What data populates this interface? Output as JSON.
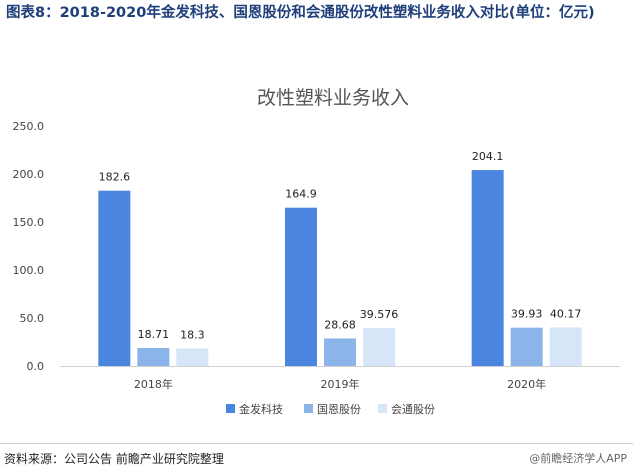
{
  "figure_title": "图表8：2018-2020年金发科技、国恩股份和会通股份改性塑料业务收入对比(单位：亿元)",
  "source": "资料来源：公司公告 前瞻产业研究院整理",
  "watermark": "@前瞻经济学人APP",
  "colors": {
    "jinfa": "#4a86e0",
    "guoen": "#8bb4ea",
    "huitong": "#d6e5f8"
  },
  "chart_data": {
    "type": "bar",
    "title": "改性塑料业务收入",
    "categories": [
      "2018年",
      "2019年",
      "2020年"
    ],
    "series": [
      {
        "name": "金发科技",
        "values": [
          182.6,
          164.9,
          204.1
        ],
        "labels": [
          "182.6",
          "164.9",
          "204.1"
        ]
      },
      {
        "name": "国恩股份",
        "values": [
          18.71,
          28.68,
          39.93
        ],
        "labels": [
          "18.71",
          "28.68",
          "39.93"
        ]
      },
      {
        "name": "会通股份",
        "values": [
          18.3,
          39.576,
          40.17
        ],
        "labels": [
          "18.3",
          "39.576",
          "40.17"
        ]
      }
    ],
    "yticks": [
      "0.0",
      "50.0",
      "100.0",
      "150.0",
      "200.0",
      "250.0"
    ],
    "ylim": [
      0,
      250
    ],
    "xlabel": "",
    "ylabel": "",
    "legend_position": "bottom-center",
    "grid": false
  }
}
